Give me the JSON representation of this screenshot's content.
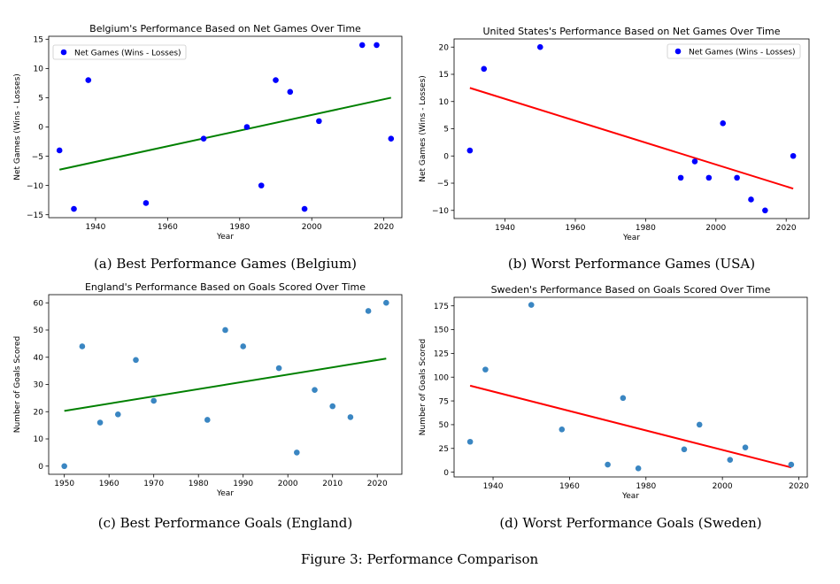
{
  "figure_caption": "Figure 3: Performance Comparison",
  "chart_data": [
    {
      "type": "scatter",
      "title": "Belgium's Performance Based on Net Games Over Time",
      "caption": "(a) Best Performance Games (Belgium)",
      "xlabel": "Year",
      "ylabel": "Net Games (Wins - Losses)",
      "xlim": [
        1927,
        2025
      ],
      "ylim": [
        -15.5,
        15.5
      ],
      "xticks": [
        1940,
        1960,
        1980,
        2000,
        2020
      ],
      "yticks": [
        -15,
        -10,
        -5,
        0,
        5,
        10,
        15
      ],
      "legend": {
        "position": "top-left",
        "label": "Net Games (Wins - Losses)"
      },
      "point_color": "#0000ff",
      "points": [
        {
          "x": 1930,
          "y": -4
        },
        {
          "x": 1934,
          "y": -14
        },
        {
          "x": 1938,
          "y": 8
        },
        {
          "x": 1954,
          "y": -13
        },
        {
          "x": 1970,
          "y": -2
        },
        {
          "x": 1982,
          "y": 0
        },
        {
          "x": 1986,
          "y": -10
        },
        {
          "x": 1990,
          "y": 8
        },
        {
          "x": 1994,
          "y": 6
        },
        {
          "x": 1998,
          "y": -14
        },
        {
          "x": 2002,
          "y": 1
        },
        {
          "x": 2014,
          "y": 14
        },
        {
          "x": 2018,
          "y": 14
        },
        {
          "x": 2022,
          "y": -2
        }
      ],
      "trend_line": {
        "color": "#008000",
        "x": [
          1930,
          2022
        ],
        "y": [
          -7.3,
          5
        ]
      },
      "grid": false
    },
    {
      "type": "scatter",
      "title": "United States's Performance Based on Net Games Over Time",
      "caption": "(b) Worst Performance Games (USA)",
      "xlabel": "Year",
      "ylabel": "Net Games (Wins - Losses)",
      "xlim": [
        1925.5,
        2026.5
      ],
      "ylim": [
        -11.5,
        21.5
      ],
      "xticks": [
        1940,
        1960,
        1980,
        2000,
        2020
      ],
      "yticks": [
        -10,
        -5,
        0,
        5,
        10,
        15,
        20
      ],
      "legend": {
        "position": "top-right",
        "label": "Net Games (Wins - Losses)"
      },
      "point_color": "#0000ff",
      "points": [
        {
          "x": 1930,
          "y": 1
        },
        {
          "x": 1934,
          "y": 16
        },
        {
          "x": 1950,
          "y": 20
        },
        {
          "x": 1990,
          "y": -4
        },
        {
          "x": 1994,
          "y": -1
        },
        {
          "x": 1998,
          "y": -4
        },
        {
          "x": 2002,
          "y": 6
        },
        {
          "x": 2006,
          "y": -4
        },
        {
          "x": 2010,
          "y": -8
        },
        {
          "x": 2014,
          "y": -10
        },
        {
          "x": 2022,
          "y": 0
        }
      ],
      "trend_line": {
        "color": "#ff0000",
        "x": [
          1930,
          2022
        ],
        "y": [
          12.5,
          -6
        ]
      },
      "grid": false
    },
    {
      "type": "scatter",
      "title": "England's Performance Based on Goals Scored Over Time",
      "caption": "(c) Best Performance Goals (England)",
      "xlabel": "Year",
      "ylabel": "Number of Goals Scored",
      "xlim": [
        1946.5,
        2025.5
      ],
      "ylim": [
        -3,
        63
      ],
      "xticks": [
        1950,
        1960,
        1970,
        1980,
        1990,
        2000,
        2010,
        2020
      ],
      "yticks": [
        0,
        10,
        20,
        30,
        40,
        50,
        60
      ],
      "point_color": "#3a86c2",
      "points": [
        {
          "x": 1950,
          "y": 0
        },
        {
          "x": 1954,
          "y": 44
        },
        {
          "x": 1958,
          "y": 16
        },
        {
          "x": 1962,
          "y": 19
        },
        {
          "x": 1966,
          "y": 39
        },
        {
          "x": 1970,
          "y": 24
        },
        {
          "x": 1982,
          "y": 17
        },
        {
          "x": 1986,
          "y": 50
        },
        {
          "x": 1990,
          "y": 44
        },
        {
          "x": 1998,
          "y": 36
        },
        {
          "x": 2002,
          "y": 5
        },
        {
          "x": 2006,
          "y": 28
        },
        {
          "x": 2010,
          "y": 22
        },
        {
          "x": 2014,
          "y": 18
        },
        {
          "x": 2018,
          "y": 57
        },
        {
          "x": 2022,
          "y": 60
        }
      ],
      "trend_line": {
        "color": "#008000",
        "x": [
          1950,
          2022
        ],
        "y": [
          20.3,
          39.5
        ]
      },
      "grid": false
    },
    {
      "type": "scatter",
      "title": "Sweden's Performance Based on Goals Scored Over Time",
      "caption": "(d) Worst Performance Goals (Sweden)",
      "xlabel": "Year",
      "ylabel": "Number of Goals Scored",
      "xlim": [
        1929.8,
        2022.2
      ],
      "ylim": [
        -5,
        184
      ],
      "xticks": [
        1940,
        1960,
        1980,
        2000,
        2020
      ],
      "yticks": [
        0,
        25,
        50,
        75,
        100,
        125,
        150,
        175
      ],
      "point_color": "#3a86c2",
      "points": [
        {
          "x": 1934,
          "y": 32
        },
        {
          "x": 1938,
          "y": 108
        },
        {
          "x": 1950,
          "y": 176
        },
        {
          "x": 1958,
          "y": 45
        },
        {
          "x": 1970,
          "y": 8
        },
        {
          "x": 1974,
          "y": 78
        },
        {
          "x": 1978,
          "y": 4
        },
        {
          "x": 1990,
          "y": 24
        },
        {
          "x": 1994,
          "y": 50
        },
        {
          "x": 2002,
          "y": 13
        },
        {
          "x": 2006,
          "y": 26
        },
        {
          "x": 2018,
          "y": 8
        }
      ],
      "trend_line": {
        "color": "#ff0000",
        "x": [
          1934,
          2018
        ],
        "y": [
          91,
          5
        ]
      },
      "grid": false
    }
  ]
}
